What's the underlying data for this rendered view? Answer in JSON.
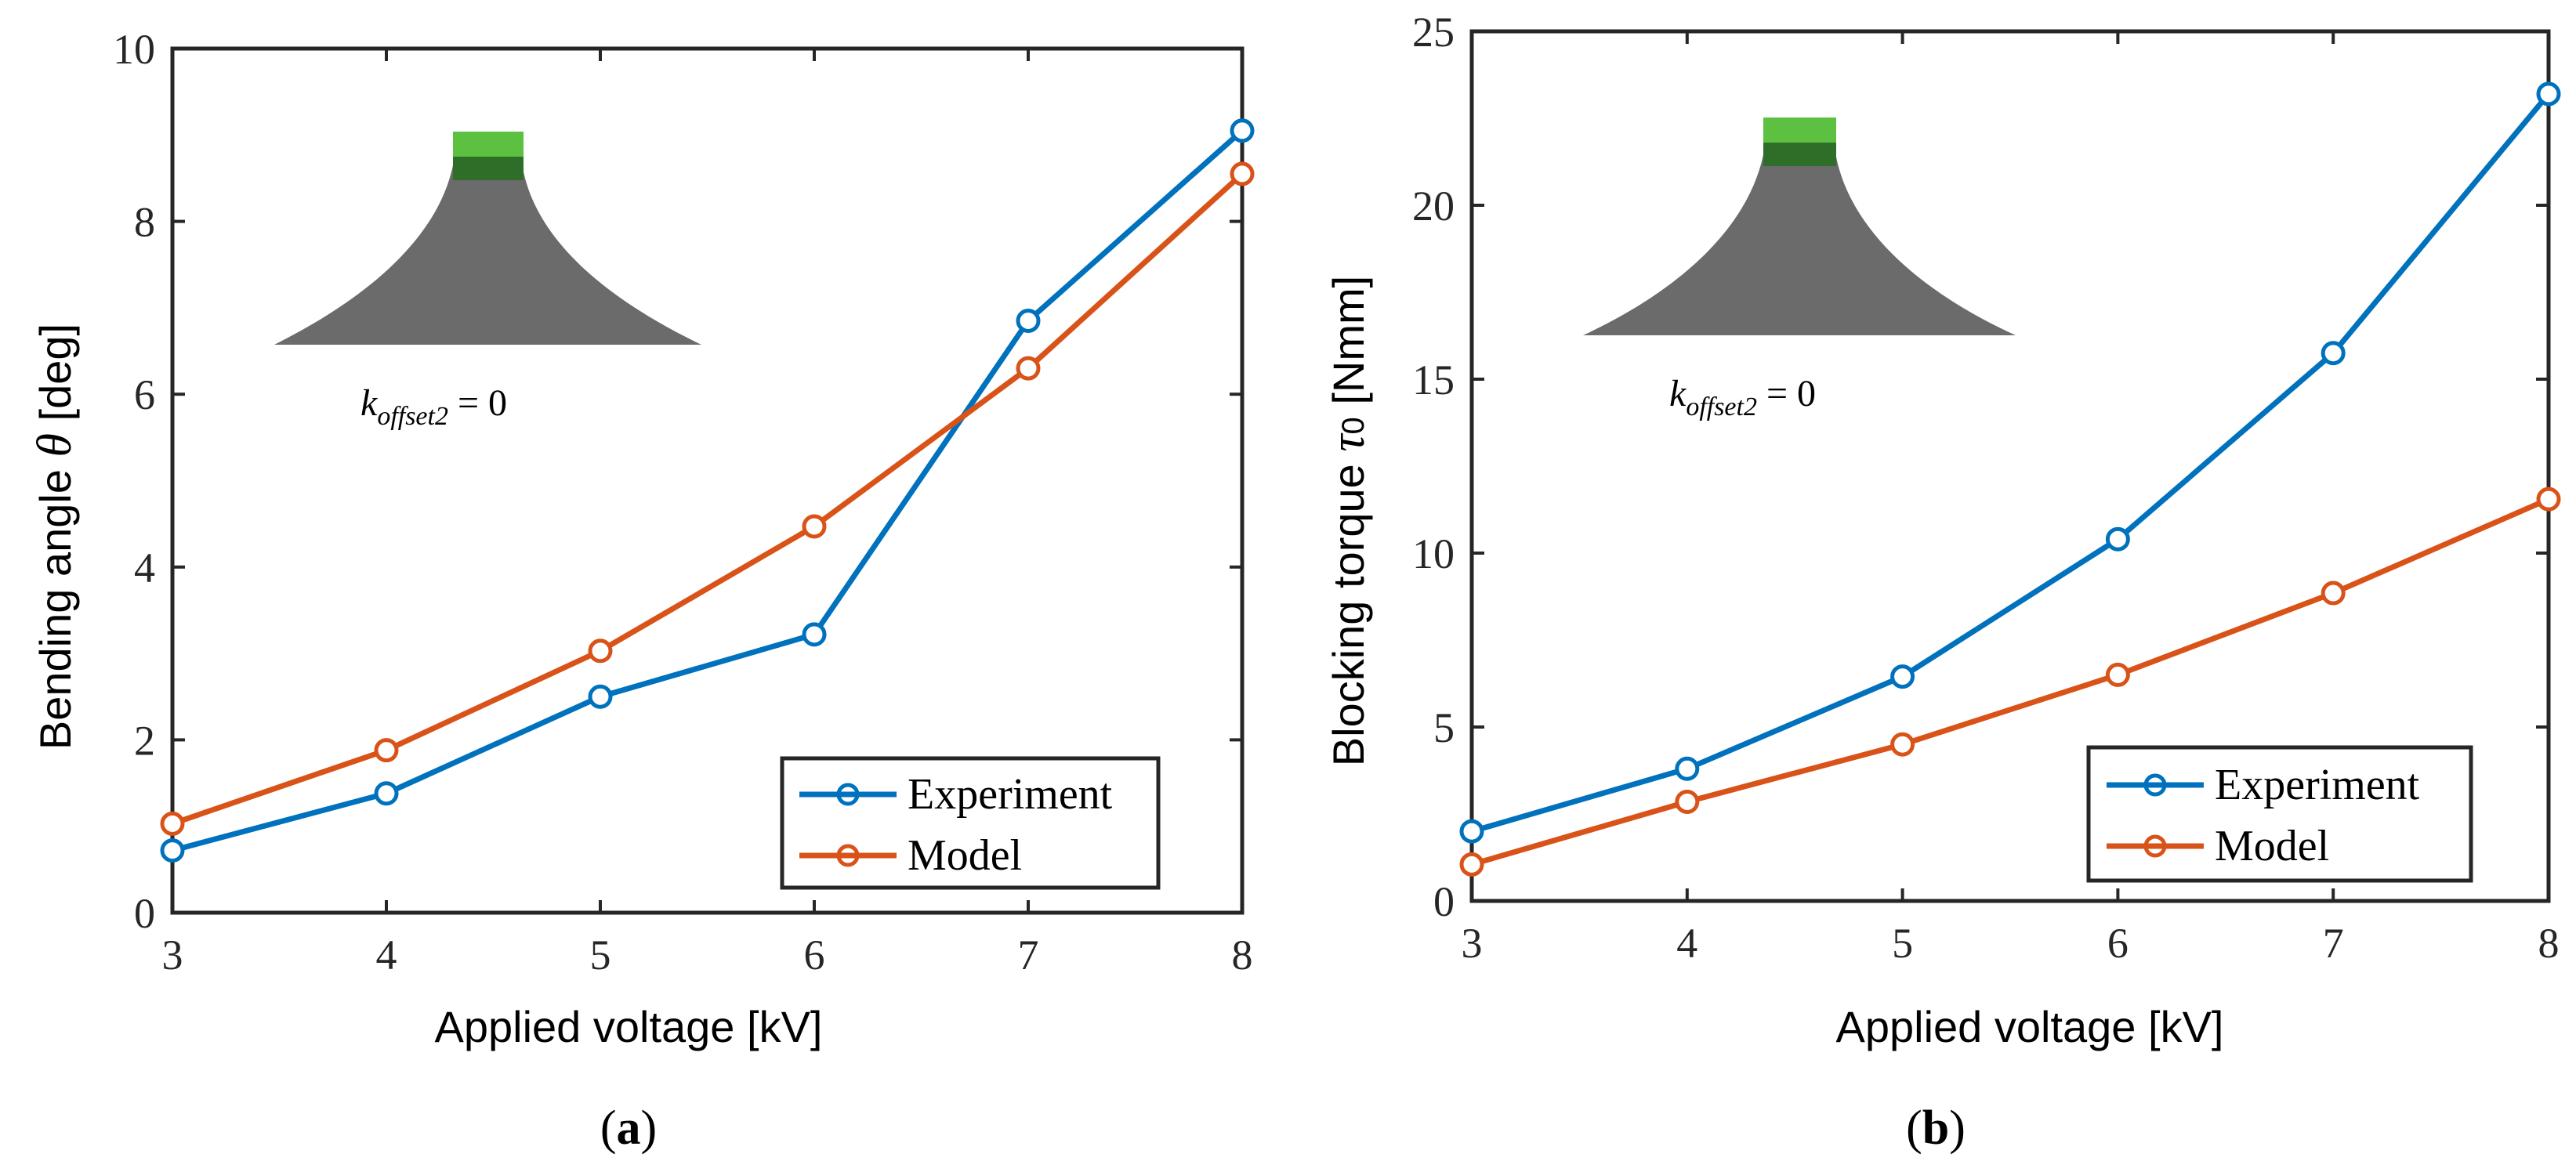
{
  "colors": {
    "experiment": "#0072BD",
    "model": "#D95319",
    "axis": "#262626",
    "beam": "#6b6b6b",
    "clamp_light": "#5cc040",
    "clamp_dark": "#2f6e28"
  },
  "chart_data": [
    {
      "type": "line",
      "panel_label_open": "(",
      "panel_label": "a",
      "panel_label_close": ")",
      "xlabel": "Applied voltage [kV]",
      "ylabel_prefix": "Bending angle",
      "ylabel_symbol": "θ",
      "ylabel_suffix": "[deg]",
      "x": [
        3,
        4,
        5,
        6,
        7,
        8
      ],
      "xlim": [
        3,
        8
      ],
      "ylim": [
        0,
        10
      ],
      "xticks": [
        "3",
        "4",
        "5",
        "6",
        "7",
        "8"
      ],
      "yticks": [
        "0",
        "2",
        "4",
        "6",
        "8",
        "10"
      ],
      "series": [
        {
          "name": "Experiment",
          "values": [
            0.72,
            1.38,
            2.5,
            3.22,
            6.85,
            9.05
          ]
        },
        {
          "name": "Model",
          "values": [
            1.03,
            1.88,
            3.03,
            4.47,
            6.3,
            8.55
          ]
        }
      ],
      "legend": [
        "Experiment",
        "Model"
      ],
      "legend_position": "bottom-right",
      "annotation": {
        "k": "k",
        "subscript": "offset2",
        "rest": " = 0"
      }
    },
    {
      "type": "line",
      "panel_label_open": "(",
      "panel_label": "b",
      "panel_label_close": ")",
      "xlabel": "Applied voltage [kV]",
      "ylabel_prefix": "Blocking torque",
      "ylabel_symbol": "τ",
      "ylabel_symbol_sub": "0",
      "ylabel_suffix": "[Nmm]",
      "x": [
        3,
        4,
        5,
        6,
        7,
        8
      ],
      "xlim": [
        3,
        8
      ],
      "ylim": [
        0,
        25
      ],
      "xticks": [
        "3",
        "4",
        "5",
        "6",
        "7",
        "8"
      ],
      "yticks": [
        "0",
        "5",
        "10",
        "15",
        "20",
        "25"
      ],
      "series": [
        {
          "name": "Experiment",
          "values": [
            2.0,
            3.8,
            6.45,
            10.4,
            15.75,
            23.2
          ]
        },
        {
          "name": "Model",
          "values": [
            1.05,
            2.85,
            4.5,
            6.5,
            8.85,
            11.55
          ]
        }
      ],
      "legend": [
        "Experiment",
        "Model"
      ],
      "legend_position": "bottom-right",
      "annotation": {
        "k": "k",
        "subscript": "offset2",
        "rest": " = 0"
      }
    }
  ]
}
